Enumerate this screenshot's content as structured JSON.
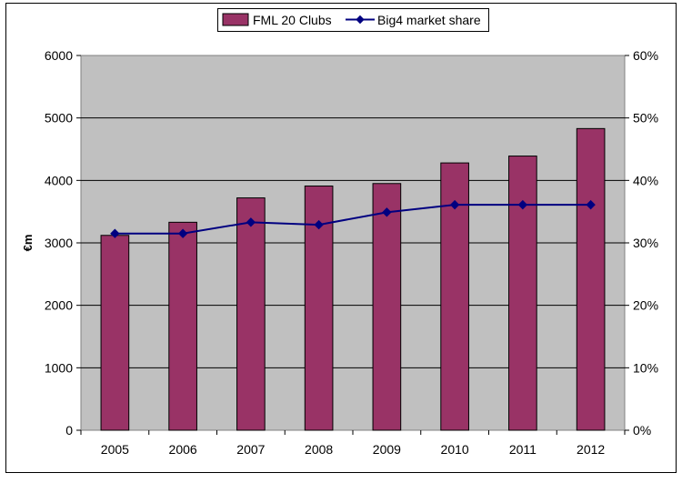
{
  "chart_data": {
    "type": "bar",
    "categories": [
      "2005",
      "2006",
      "2007",
      "2008",
      "2009",
      "2010",
      "2011",
      "2012"
    ],
    "series": [
      {
        "name": "FML 20 Clubs",
        "type": "bar",
        "axis": "left",
        "values": [
          3120,
          3330,
          3720,
          3910,
          3950,
          4280,
          4390,
          4830
        ]
      },
      {
        "name": "Big4 market share",
        "type": "line",
        "axis": "right",
        "values": [
          31.5,
          31.5,
          33.3,
          32.9,
          34.9,
          36.1,
          36.1,
          36.1
        ]
      }
    ],
    "ylabel": "€m",
    "ylim": [
      0,
      6000
    ],
    "yticks": [
      "0",
      "1000",
      "2000",
      "3000",
      "4000",
      "5000",
      "6000"
    ],
    "y2lim": [
      0,
      60
    ],
    "y2ticks": [
      "0%",
      "10%",
      "20%",
      "30%",
      "40%",
      "50%",
      "60%"
    ],
    "grid": true,
    "legend_position": "top-center",
    "colors": {
      "bars": "#993366",
      "line": "#000080",
      "plot_background": "#c0c0c0"
    }
  }
}
